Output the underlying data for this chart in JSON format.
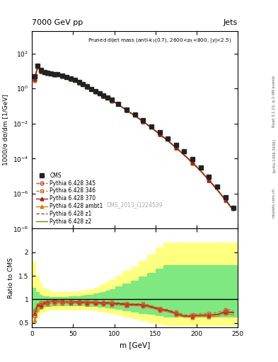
{
  "title_top": "7000 GeV pp",
  "title_right": "Jets",
  "xlabel": "m [GeV]",
  "ylabel_main": "1000/σ dσ/dm [1/GeV]",
  "ylabel_ratio": "Ratio to CMS",
  "watermark": "CMS_2013_I1224539",
  "rivet_label": "Rivet 3.1.10, ≥ 2.9M events",
  "arxiv_label": "[arXiv:1306.3436]",
  "mcplots_label": "mcplots.cern.ch",
  "x_values": [
    3,
    7,
    11,
    15,
    19,
    23,
    27,
    31,
    37,
    42,
    47,
    52,
    57,
    62,
    67,
    72,
    77,
    82,
    87,
    92,
    97,
    105,
    115,
    125,
    135,
    145,
    155,
    165,
    175,
    185,
    195,
    205,
    215,
    225,
    235,
    245
  ],
  "cms_y": [
    5.0,
    20.0,
    11.0,
    9.0,
    8.2,
    7.2,
    6.8,
    6.3,
    5.5,
    4.7,
    3.8,
    3.0,
    2.35,
    1.75,
    1.3,
    0.97,
    0.73,
    0.55,
    0.4,
    0.3,
    0.225,
    0.135,
    0.065,
    0.032,
    0.015,
    0.007,
    0.0032,
    0.0014,
    0.0006,
    0.00025,
    9e-05,
    3e-05,
    9e-06,
    2.5e-06,
    6e-07,
    1.5e-07
  ],
  "py345_y": [
    3.2,
    16.5,
    9.5,
    8.1,
    7.6,
    6.8,
    6.5,
    6.0,
    5.2,
    4.4,
    3.55,
    2.8,
    2.18,
    1.62,
    1.2,
    0.9,
    0.67,
    0.5,
    0.365,
    0.272,
    0.202,
    0.12,
    0.057,
    0.028,
    0.013,
    0.0058,
    0.0025,
    0.00105,
    0.00042,
    0.00016,
    5.8e-05,
    2e-05,
    6e-06,
    1.7e-06,
    4.5e-07,
    1.1e-07
  ],
  "py346_y": [
    3.8,
    18.5,
    10.2,
    8.6,
    7.8,
    6.95,
    6.55,
    6.1,
    5.3,
    4.5,
    3.65,
    2.88,
    2.25,
    1.68,
    1.24,
    0.93,
    0.7,
    0.52,
    0.38,
    0.284,
    0.212,
    0.126,
    0.06,
    0.029,
    0.0137,
    0.0061,
    0.0026,
    0.0011,
    0.00044,
    0.000168,
    6.1e-05,
    2.1e-05,
    6.3e-06,
    1.8e-06,
    4.7e-07,
    1.15e-07
  ],
  "py370_y": [
    3.5,
    17.5,
    9.8,
    8.3,
    7.7,
    6.9,
    6.52,
    6.05,
    5.25,
    4.46,
    3.6,
    2.84,
    2.22,
    1.65,
    1.22,
    0.91,
    0.685,
    0.51,
    0.372,
    0.278,
    0.206,
    0.123,
    0.058,
    0.0285,
    0.0133,
    0.0059,
    0.00255,
    0.00107,
    0.000425,
    0.000162,
    5.85e-05,
    2e-05,
    6e-06,
    1.7e-06,
    4.4e-07,
    1.08e-07
  ],
  "pyambt1_y": [
    2.8,
    15.0,
    9.2,
    7.9,
    7.4,
    6.6,
    6.25,
    5.8,
    5.05,
    4.3,
    3.48,
    2.74,
    2.14,
    1.6,
    1.18,
    0.885,
    0.665,
    0.496,
    0.362,
    0.27,
    0.2,
    0.119,
    0.0565,
    0.0277,
    0.0129,
    0.0057,
    0.00245,
    0.00103,
    0.00041,
    0.000155,
    5.6e-05,
    1.9e-05,
    5.7e-06,
    1.6e-06,
    4.2e-07,
    1e-07
  ],
  "pyz1_y": [
    3.3,
    17.0,
    9.65,
    8.2,
    7.65,
    6.85,
    6.47,
    6.01,
    5.22,
    4.43,
    3.57,
    2.82,
    2.2,
    1.635,
    1.21,
    0.905,
    0.68,
    0.506,
    0.369,
    0.275,
    0.204,
    0.122,
    0.0575,
    0.0283,
    0.0132,
    0.00585,
    0.00252,
    0.00106,
    0.00042,
    0.00016,
    5.8e-05,
    1.98e-05,
    5.95e-06,
    1.68e-06,
    4.38e-07,
    1.07e-07
  ],
  "pyz2_y": [
    3.6,
    18.0,
    10.0,
    8.5,
    7.72,
    6.92,
    6.53,
    6.07,
    5.27,
    4.48,
    3.62,
    2.86,
    2.23,
    1.66,
    1.225,
    0.915,
    0.687,
    0.512,
    0.373,
    0.278,
    0.207,
    0.1235,
    0.0585,
    0.0287,
    0.01335,
    0.00592,
    0.00255,
    0.001072,
    0.000425,
    0.000162,
    5.85e-05,
    2e-05,
    6e-06,
    1.7e-06,
    4.42e-07,
    1.08e-07
  ],
  "color_cms": "#222222",
  "color_py345": "#d04040",
  "color_py346": "#c87820",
  "color_py370": "#a02020",
  "color_pyambt1": "#d88010",
  "color_pyz1": "#b03030",
  "color_pyz2": "#808000",
  "ylim_main": [
    1e-08,
    2000.0
  ],
  "ylim_ratio": [
    0.4,
    2.5
  ],
  "xlim": [
    0,
    250
  ],
  "band_outer_color": "#ffff80",
  "band_inner_color": "#80e880",
  "ratio_yticks": [
    0.5,
    1.0,
    1.5,
    2.0
  ],
  "ratio_yticklabels": [
    "0.5",
    "1",
    "1.5",
    "2"
  ],
  "ratio_345": [
    0.64,
    0.83,
    0.86,
    0.9,
    0.93,
    0.94,
    0.96,
    0.95,
    0.95,
    0.94,
    0.93,
    0.93,
    0.93,
    0.93,
    0.92,
    0.93,
    0.92,
    0.91,
    0.91,
    0.91,
    0.9,
    0.89,
    0.88,
    0.875,
    0.87,
    0.83,
    0.78,
    0.75,
    0.7,
    0.64,
    0.645,
    0.667,
    0.667,
    0.68,
    0.75,
    0.73
  ],
  "ratio_346": [
    0.76,
    0.93,
    0.93,
    0.956,
    0.95,
    0.965,
    0.963,
    0.968,
    0.964,
    0.957,
    0.96,
    0.96,
    0.957,
    0.96,
    0.954,
    0.959,
    0.959,
    0.945,
    0.95,
    0.947,
    0.942,
    0.933,
    0.923,
    0.906,
    0.913,
    0.871,
    0.813,
    0.786,
    0.733,
    0.672,
    0.678,
    0.7,
    0.7,
    0.72,
    0.783,
    0.767
  ],
  "ratio_370": [
    0.7,
    0.875,
    0.89,
    0.922,
    0.939,
    0.958,
    0.959,
    0.96,
    0.955,
    0.949,
    0.947,
    0.947,
    0.945,
    0.943,
    0.938,
    0.938,
    0.938,
    0.927,
    0.93,
    0.927,
    0.916,
    0.911,
    0.892,
    0.891,
    0.887,
    0.843,
    0.797,
    0.764,
    0.708,
    0.648,
    0.65,
    0.667,
    0.667,
    0.68,
    0.733,
    0.72
  ],
  "ratio_ambt1": [
    0.56,
    0.75,
    0.836,
    0.878,
    0.902,
    0.917,
    0.919,
    0.921,
    0.918,
    0.915,
    0.916,
    0.913,
    0.911,
    0.914,
    0.908,
    0.913,
    0.911,
    0.902,
    0.905,
    0.9,
    0.889,
    0.881,
    0.869,
    0.866,
    0.86,
    0.814,
    0.766,
    0.736,
    0.683,
    0.62,
    0.622,
    0.633,
    0.633,
    0.64,
    0.7,
    0.667
  ],
  "ratio_z1": [
    0.66,
    0.85,
    0.878,
    0.911,
    0.932,
    0.951,
    0.951,
    0.954,
    0.949,
    0.943,
    0.94,
    0.94,
    0.936,
    0.934,
    0.931,
    0.932,
    0.931,
    0.92,
    0.923,
    0.917,
    0.907,
    0.904,
    0.885,
    0.884,
    0.88,
    0.836,
    0.788,
    0.757,
    0.7,
    0.64,
    0.644,
    0.66,
    0.661,
    0.672,
    0.73,
    0.713
  ],
  "ratio_z2": [
    0.72,
    0.9,
    0.909,
    0.944,
    0.941,
    0.961,
    0.96,
    0.962,
    0.958,
    0.953,
    0.952,
    0.953,
    0.949,
    0.949,
    0.942,
    0.943,
    0.941,
    0.931,
    0.933,
    0.927,
    0.92,
    0.915,
    0.9,
    0.897,
    0.89,
    0.846,
    0.797,
    0.766,
    0.708,
    0.648,
    0.65,
    0.667,
    0.667,
    0.68,
    0.737,
    0.72
  ],
  "band_outer_top": [
    1.8,
    1.5,
    1.35,
    1.25,
    1.2,
    1.18,
    1.16,
    1.15,
    1.15,
    1.15,
    1.15,
    1.16,
    1.17,
    1.18,
    1.2,
    1.22,
    1.25,
    1.28,
    1.32,
    1.37,
    1.42,
    1.5,
    1.6,
    1.7,
    1.82,
    1.95,
    2.1,
    2.2,
    2.2,
    2.2,
    2.2,
    2.2,
    2.2,
    2.2,
    2.2,
    2.2
  ],
  "band_outer_bottom": [
    0.5,
    0.6,
    0.68,
    0.72,
    0.75,
    0.76,
    0.77,
    0.77,
    0.77,
    0.77,
    0.77,
    0.77,
    0.77,
    0.77,
    0.77,
    0.76,
    0.75,
    0.74,
    0.73,
    0.71,
    0.69,
    0.66,
    0.62,
    0.58,
    0.54,
    0.5,
    0.46,
    0.44,
    0.44,
    0.44,
    0.44,
    0.44,
    0.44,
    0.44,
    0.44,
    0.44
  ],
  "band_inner_top": [
    1.25,
    1.15,
    1.1,
    1.07,
    1.06,
    1.055,
    1.05,
    1.05,
    1.05,
    1.055,
    1.06,
    1.065,
    1.07,
    1.08,
    1.09,
    1.1,
    1.12,
    1.14,
    1.16,
    1.19,
    1.22,
    1.27,
    1.33,
    1.4,
    1.48,
    1.56,
    1.65,
    1.72,
    1.72,
    1.72,
    1.72,
    1.72,
    1.72,
    1.72,
    1.72,
    1.72
  ],
  "band_inner_bottom": [
    0.65,
    0.72,
    0.78,
    0.82,
    0.84,
    0.845,
    0.85,
    0.855,
    0.855,
    0.855,
    0.855,
    0.855,
    0.855,
    0.852,
    0.848,
    0.844,
    0.838,
    0.83,
    0.82,
    0.808,
    0.795,
    0.775,
    0.75,
    0.725,
    0.698,
    0.67,
    0.64,
    0.62,
    0.62,
    0.62,
    0.62,
    0.62,
    0.62,
    0.62,
    0.62,
    0.62
  ]
}
